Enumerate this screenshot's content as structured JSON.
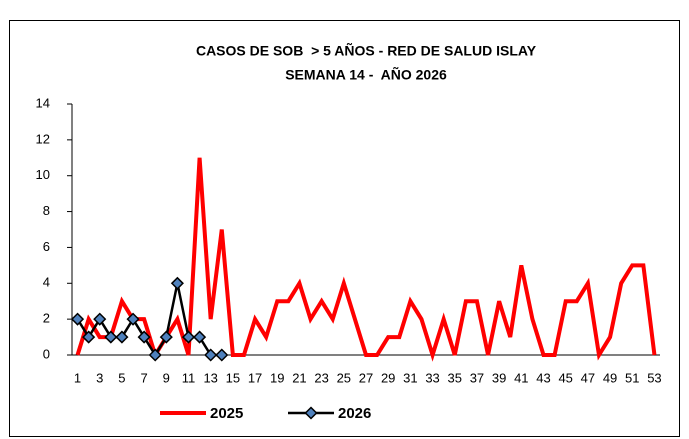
{
  "chart_data": {
    "type": "line",
    "title": "CASOS DE SOB  > 5 AÑOS - RED DE SALUD ISLAY",
    "subtitle": "SEMANA 14 -  AÑO 2026",
    "categories": [
      1,
      null,
      3,
      null,
      5,
      null,
      7,
      null,
      9,
      null,
      11,
      null,
      13,
      null,
      15,
      null,
      17,
      null,
      19,
      null,
      21,
      null,
      23,
      null,
      25,
      null,
      27,
      null,
      29,
      null,
      31,
      null,
      33,
      null,
      35,
      null,
      37,
      null,
      39,
      null,
      41,
      null,
      43,
      null,
      45,
      null,
      47,
      null,
      49,
      null,
      51,
      null,
      53
    ],
    "series": [
      {
        "name": "2025",
        "color": "#ff0000",
        "values": [
          0,
          2,
          1,
          1,
          3,
          2,
          2,
          0,
          1,
          2,
          0,
          11,
          2,
          7,
          0,
          0,
          2,
          1,
          3,
          3,
          4,
          2,
          3,
          2,
          4,
          2,
          0,
          0,
          1,
          1,
          3,
          2,
          0,
          2,
          0,
          3,
          3,
          0,
          3,
          1,
          5,
          2,
          0,
          0,
          3,
          3,
          4,
          0,
          1,
          4,
          5,
          5,
          0
        ]
      },
      {
        "name": "2026",
        "color": "#000000",
        "marker": "diamond",
        "marker_color": "#4f81bd",
        "values": [
          2,
          1,
          2,
          1,
          1,
          2,
          1,
          0,
          1,
          4,
          1,
          1,
          0,
          0,
          null,
          null,
          null,
          null,
          null,
          null,
          null,
          null,
          null,
          null,
          null,
          null,
          null,
          null,
          null,
          null,
          null,
          null,
          null,
          null,
          null,
          null,
          null,
          null,
          null,
          null,
          null,
          null,
          null,
          null,
          null,
          null,
          null,
          null,
          null,
          null,
          null,
          null,
          null
        ]
      }
    ],
    "ylim": [
      0,
      14
    ],
    "yticks": [
      0,
      2,
      4,
      6,
      8,
      10,
      12,
      14
    ],
    "grid": false,
    "legend": "bottom"
  }
}
